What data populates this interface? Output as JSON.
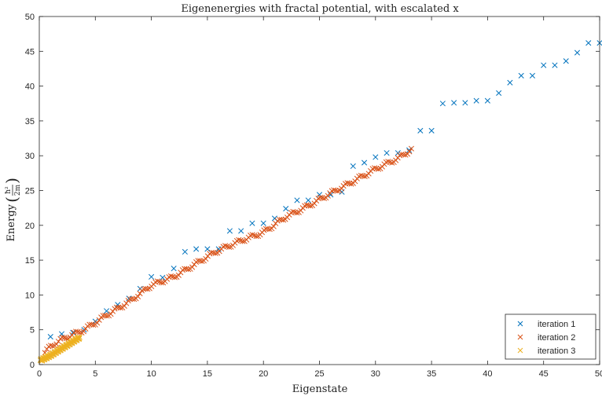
{
  "chart_data": {
    "type": "scatter",
    "title": "Eigenenergies with fractal potential, with escalated x",
    "xlabel": "Eigenstate",
    "ylabel": "Energy",
    "ylabel_math": {
      "numerator": "ħ²",
      "denominator": "2m"
    },
    "xlim": [
      0,
      50
    ],
    "ylim": [
      0,
      50
    ],
    "xticks": [
      0,
      5,
      10,
      15,
      20,
      25,
      30,
      35,
      40,
      45,
      50
    ],
    "yticks": [
      0,
      5,
      10,
      15,
      20,
      25,
      30,
      35,
      40,
      45,
      50
    ],
    "grid": false,
    "legend_position": "bottom-right",
    "marker": "x",
    "series": [
      {
        "name": "iteration 1",
        "color": "#0072BD",
        "x": [
          1,
          2,
          3,
          4,
          5,
          6,
          7,
          8,
          9,
          10,
          11,
          12,
          13,
          14,
          15,
          16,
          17,
          18,
          19,
          20,
          21,
          22,
          23,
          24,
          25,
          26,
          27,
          28,
          29,
          30,
          31,
          32,
          33,
          34,
          35,
          36,
          37,
          38,
          39,
          40,
          41,
          42,
          43,
          44,
          45,
          46,
          47,
          48,
          49,
          50
        ],
        "y": [
          4.0,
          4.4,
          4.6,
          5.0,
          6.2,
          7.7,
          8.6,
          9.5,
          10.9,
          12.6,
          12.5,
          13.8,
          16.2,
          16.6,
          16.6,
          16.6,
          19.2,
          19.2,
          20.3,
          20.3,
          21.0,
          22.4,
          23.6,
          23.6,
          24.4,
          24.4,
          24.8,
          28.5,
          29.0,
          29.8,
          30.4,
          30.4,
          30.8,
          33.6,
          33.6,
          37.5,
          37.6,
          37.6,
          37.9,
          37.9,
          39.0,
          40.5,
          41.5,
          41.5,
          43.0,
          43.0,
          43.6,
          44.8,
          46.2,
          46.2
        ]
      },
      {
        "name": "iteration 2",
        "color": "#D95319",
        "gen": {
          "count": 190,
          "x_start": 0.5,
          "x_end": 33.2,
          "wiggle": 0.55,
          "kx": [
            0.0,
            1.0,
            2.0,
            3.0,
            4.0,
            5.0,
            6.0,
            8.0,
            10.0,
            12.0,
            14.0,
            15.0,
            16.0,
            18.0,
            20.0,
            22.0,
            24.0,
            26.0,
            28.0,
            30.0,
            32.0,
            33.2
          ],
          "ky": [
            0.8,
            2.6,
            3.6,
            4.3,
            5.0,
            6.0,
            7.1,
            9.0,
            11.4,
            12.6,
            14.5,
            15.5,
            16.4,
            17.8,
            19.0,
            21.2,
            22.8,
            24.6,
            26.3,
            28.1,
            29.6,
            30.9
          ]
        }
      },
      {
        "name": "iteration 3",
        "color": "#EDB120",
        "gen": {
          "count": 120,
          "x_start": 0.1,
          "x_end": 3.6,
          "wiggle": 0.35,
          "kx": [
            0.1,
            0.5,
            1.0,
            1.5,
            2.0,
            2.5,
            3.0,
            3.6
          ],
          "ky": [
            0.6,
            0.9,
            1.3,
            1.8,
            2.3,
            2.8,
            3.3,
            3.9
          ]
        }
      }
    ]
  }
}
